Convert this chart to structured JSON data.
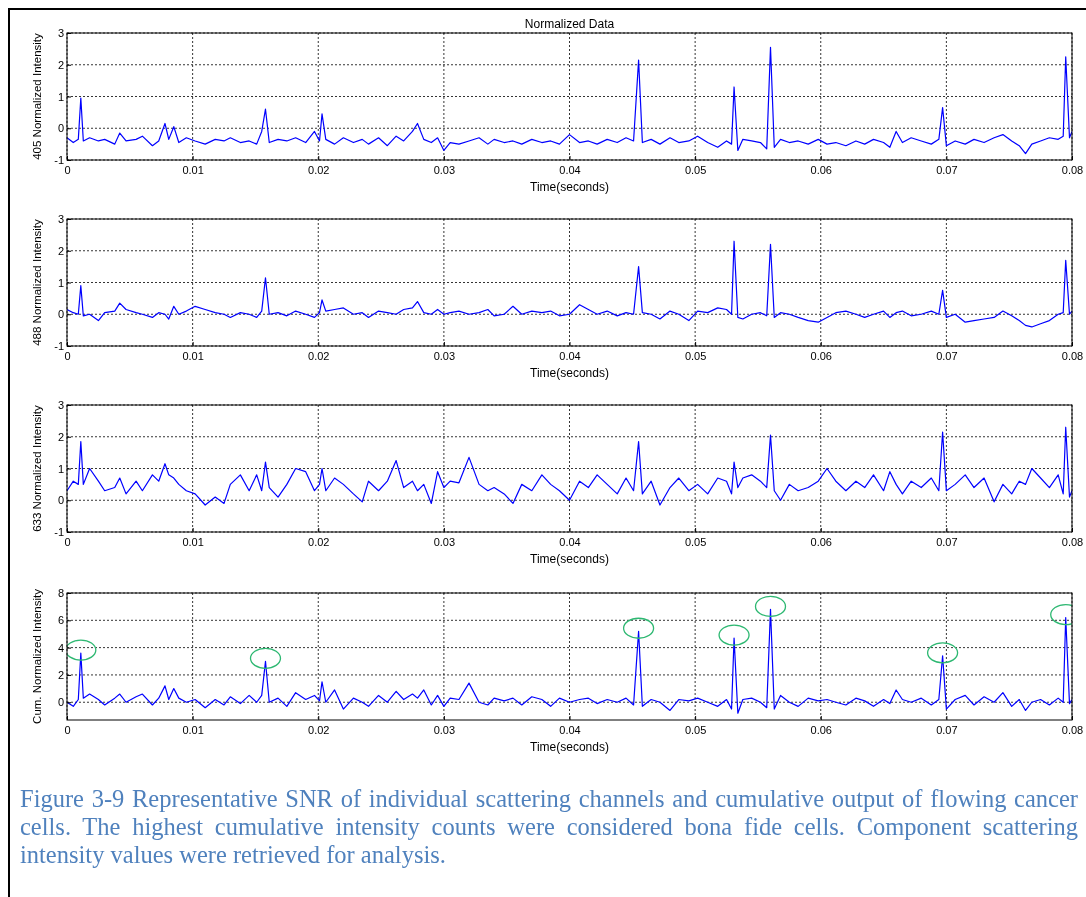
{
  "chart_data": [
    {
      "type": "line",
      "title": "Normalized Data",
      "xlabel": "Time(seconds)",
      "ylabel": "405 Normalized Intensity",
      "xlim": [
        0,
        0.08
      ],
      "xticks": [
        0,
        0.01,
        0.02,
        0.03,
        0.04,
        0.05,
        0.06,
        0.07,
        0.08
      ],
      "ylim": [
        -1,
        3
      ],
      "yticks": [
        -1,
        0,
        1,
        2,
        3
      ],
      "grid": true,
      "x": [
        0,
        0.0005,
        0.0009,
        0.0011,
        0.0013,
        0.0018,
        0.0025,
        0.003,
        0.0038,
        0.0042,
        0.0047,
        0.0055,
        0.006,
        0.0068,
        0.0073,
        0.0078,
        0.0081,
        0.0085,
        0.0089,
        0.0095,
        0.0102,
        0.011,
        0.0118,
        0.0125,
        0.013,
        0.0138,
        0.0145,
        0.0151,
        0.0155,
        0.0158,
        0.0161,
        0.0168,
        0.0175,
        0.0182,
        0.019,
        0.0197,
        0.0201,
        0.0203,
        0.0206,
        0.0213,
        0.022,
        0.0228,
        0.0235,
        0.024,
        0.0248,
        0.0255,
        0.0262,
        0.0268,
        0.0275,
        0.0279,
        0.0284,
        0.029,
        0.0295,
        0.03,
        0.0305,
        0.0312,
        0.032,
        0.0328,
        0.0335,
        0.034,
        0.0348,
        0.0355,
        0.0362,
        0.037,
        0.0378,
        0.0385,
        0.0392,
        0.04,
        0.0408,
        0.0415,
        0.0422,
        0.043,
        0.0438,
        0.0445,
        0.0451,
        0.0455,
        0.0458,
        0.0465,
        0.0472,
        0.048,
        0.0487,
        0.0495,
        0.0502,
        0.051,
        0.0518,
        0.0525,
        0.0529,
        0.0531,
        0.0534,
        0.0538,
        0.0545,
        0.0552,
        0.0557,
        0.056,
        0.0563,
        0.0568,
        0.0575,
        0.0582,
        0.059,
        0.0598,
        0.0605,
        0.0612,
        0.062,
        0.0628,
        0.0635,
        0.0642,
        0.065,
        0.0655,
        0.066,
        0.0665,
        0.0672,
        0.068,
        0.0688,
        0.0694,
        0.0697,
        0.07,
        0.0707,
        0.0715,
        0.0722,
        0.073,
        0.0738,
        0.0745,
        0.0752,
        0.0758,
        0.0763,
        0.0768,
        0.0775,
        0.0782,
        0.0789,
        0.0793,
        0.0795,
        0.0798,
        0.08
      ],
      "series": [
        {
          "color": "#0000ff",
          "values": [
            -0.3,
            -0.45,
            -0.35,
            0.95,
            -0.4,
            -0.3,
            -0.4,
            -0.35,
            -0.5,
            -0.15,
            -0.4,
            -0.35,
            -0.25,
            -0.55,
            -0.4,
            0.15,
            -0.35,
            0.05,
            -0.45,
            -0.3,
            -0.4,
            -0.5,
            -0.35,
            -0.4,
            -0.3,
            -0.45,
            -0.4,
            -0.5,
            -0.1,
            0.6,
            -0.45,
            -0.35,
            -0.4,
            -0.3,
            -0.45,
            -0.1,
            -0.4,
            0.45,
            -0.35,
            -0.5,
            -0.3,
            -0.45,
            -0.35,
            -0.5,
            -0.3,
            -0.55,
            -0.25,
            -0.4,
            -0.1,
            0.15,
            -0.35,
            -0.45,
            -0.3,
            -0.7,
            -0.45,
            -0.5,
            -0.4,
            -0.3,
            -0.5,
            -0.35,
            -0.45,
            -0.4,
            -0.5,
            -0.35,
            -0.45,
            -0.4,
            -0.5,
            -0.2,
            -0.45,
            -0.4,
            -0.5,
            -0.35,
            -0.45,
            -0.3,
            -0.4,
            2.15,
            -0.45,
            -0.35,
            -0.5,
            -0.3,
            -0.45,
            -0.4,
            -0.25,
            -0.45,
            -0.6,
            -0.4,
            -0.5,
            1.3,
            -0.7,
            -0.35,
            -0.4,
            -0.45,
            -0.65,
            2.55,
            -0.6,
            -0.35,
            -0.45,
            -0.4,
            -0.5,
            -0.35,
            -0.5,
            -0.45,
            -0.55,
            -0.4,
            -0.5,
            -0.35,
            -0.45,
            -0.6,
            -0.1,
            -0.45,
            -0.3,
            -0.4,
            -0.5,
            -0.35,
            0.65,
            -0.55,
            -0.4,
            -0.5,
            -0.35,
            -0.45,
            -0.3,
            -0.2,
            -0.4,
            -0.55,
            -0.8,
            -0.5,
            -0.4,
            -0.3,
            -0.35,
            -0.25,
            2.25,
            -0.3,
            -0.1
          ]
        }
      ]
    },
    {
      "type": "line",
      "xlabel": "Time(seconds)",
      "ylabel": "488 Normalized Intensity",
      "xlim": [
        0,
        0.08
      ],
      "xticks": [
        0,
        0.01,
        0.02,
        0.03,
        0.04,
        0.05,
        0.06,
        0.07,
        0.08
      ],
      "ylim": [
        -1,
        3
      ],
      "yticks": [
        -1,
        0,
        1,
        2,
        3
      ],
      "grid": true,
      "x": [
        0,
        0.0005,
        0.0009,
        0.0011,
        0.0013,
        0.0018,
        0.0025,
        0.003,
        0.0038,
        0.0042,
        0.0047,
        0.0055,
        0.006,
        0.0068,
        0.0073,
        0.0078,
        0.0081,
        0.0085,
        0.0089,
        0.0095,
        0.0102,
        0.011,
        0.0118,
        0.0125,
        0.013,
        0.0138,
        0.0145,
        0.0151,
        0.0155,
        0.0158,
        0.0161,
        0.0168,
        0.0175,
        0.0182,
        0.019,
        0.0197,
        0.0201,
        0.0203,
        0.0206,
        0.0213,
        0.022,
        0.0228,
        0.0235,
        0.024,
        0.0248,
        0.0255,
        0.0262,
        0.0268,
        0.0275,
        0.0279,
        0.0284,
        0.029,
        0.0295,
        0.03,
        0.0305,
        0.0312,
        0.032,
        0.0328,
        0.0335,
        0.034,
        0.0348,
        0.0355,
        0.0362,
        0.037,
        0.0378,
        0.0385,
        0.0392,
        0.04,
        0.0408,
        0.0415,
        0.0422,
        0.043,
        0.0438,
        0.0445,
        0.0451,
        0.0455,
        0.0458,
        0.0465,
        0.0472,
        0.048,
        0.0487,
        0.0495,
        0.0502,
        0.051,
        0.0518,
        0.0525,
        0.0529,
        0.0531,
        0.0534,
        0.0538,
        0.0545,
        0.0552,
        0.0557,
        0.056,
        0.0563,
        0.0568,
        0.0575,
        0.0582,
        0.059,
        0.0598,
        0.0605,
        0.0612,
        0.062,
        0.0628,
        0.0635,
        0.0642,
        0.065,
        0.0655,
        0.066,
        0.0665,
        0.0672,
        0.068,
        0.0688,
        0.0694,
        0.0697,
        0.07,
        0.0707,
        0.0715,
        0.0722,
        0.073,
        0.0738,
        0.0745,
        0.0752,
        0.0758,
        0.0763,
        0.0768,
        0.0775,
        0.0782,
        0.0789,
        0.0793,
        0.0795,
        0.0798,
        0.08
      ],
      "series": [
        {
          "color": "#0000ff",
          "values": [
            0.15,
            0.05,
            0.0,
            0.9,
            -0.05,
            0.0,
            -0.2,
            0.05,
            0.1,
            0.35,
            0.15,
            0.05,
            0.0,
            -0.1,
            0.05,
            0.0,
            -0.15,
            0.25,
            0.0,
            0.1,
            0.25,
            0.15,
            0.05,
            0.0,
            -0.1,
            0.05,
            0.0,
            -0.1,
            0.1,
            1.15,
            0.0,
            0.05,
            -0.05,
            0.1,
            0.0,
            -0.1,
            0.05,
            0.45,
            0.1,
            0.15,
            0.2,
            0.0,
            0.05,
            -0.1,
            0.1,
            0.05,
            0.0,
            0.15,
            0.2,
            0.4,
            0.05,
            0.0,
            0.15,
            0.0,
            0.05,
            0.1,
            0.0,
            0.05,
            0.15,
            -0.05,
            0.0,
            0.25,
            0.0,
            0.1,
            0.05,
            0.1,
            -0.05,
            0.0,
            0.3,
            0.15,
            0.0,
            0.1,
            -0.05,
            0.05,
            0.0,
            1.5,
            0.05,
            0.0,
            -0.15,
            0.1,
            0.0,
            -0.2,
            0.1,
            0.05,
            0.2,
            0.15,
            0.0,
            2.3,
            -0.1,
            -0.15,
            0.0,
            0.05,
            -0.05,
            2.2,
            -0.1,
            0.05,
            0.0,
            -0.1,
            -0.2,
            -0.25,
            -0.1,
            0.05,
            0.1,
            0.0,
            -0.1,
            0.0,
            0.1,
            -0.1,
            0.05,
            0.1,
            -0.05,
            0.0,
            0.1,
            0.0,
            0.75,
            -0.1,
            0.0,
            -0.25,
            -0.2,
            -0.15,
            -0.1,
            0.1,
            -0.05,
            -0.2,
            -0.35,
            -0.4,
            -0.3,
            -0.2,
            0.0,
            0.05,
            1.7,
            0.0,
            0.1
          ]
        }
      ]
    },
    {
      "type": "line",
      "xlabel": "Time(seconds)",
      "ylabel": "633 Normalized Intensity",
      "xlim": [
        0,
        0.08
      ],
      "xticks": [
        0,
        0.01,
        0.02,
        0.03,
        0.04,
        0.05,
        0.06,
        0.07,
        0.08
      ],
      "ylim": [
        -1,
        3
      ],
      "yticks": [
        -1,
        0,
        1,
        2,
        3
      ],
      "grid": true,
      "x": [
        0,
        0.0005,
        0.0009,
        0.0011,
        0.0013,
        0.0018,
        0.0025,
        0.003,
        0.0038,
        0.0042,
        0.0047,
        0.0055,
        0.006,
        0.0068,
        0.0073,
        0.0078,
        0.0081,
        0.0085,
        0.0089,
        0.0095,
        0.0102,
        0.011,
        0.0118,
        0.0125,
        0.013,
        0.0138,
        0.0145,
        0.0151,
        0.0155,
        0.0158,
        0.0161,
        0.0168,
        0.0175,
        0.0182,
        0.019,
        0.0197,
        0.0201,
        0.0203,
        0.0206,
        0.0213,
        0.022,
        0.0228,
        0.0235,
        0.024,
        0.0248,
        0.0255,
        0.0262,
        0.0268,
        0.0275,
        0.0279,
        0.0284,
        0.029,
        0.0295,
        0.03,
        0.0305,
        0.0312,
        0.032,
        0.0328,
        0.0335,
        0.034,
        0.0348,
        0.0355,
        0.0362,
        0.037,
        0.0378,
        0.0385,
        0.0392,
        0.04,
        0.0408,
        0.0415,
        0.0422,
        0.043,
        0.0438,
        0.0445,
        0.0451,
        0.0455,
        0.0458,
        0.0465,
        0.0472,
        0.048,
        0.0487,
        0.0495,
        0.0502,
        0.051,
        0.0518,
        0.0525,
        0.0529,
        0.0531,
        0.0534,
        0.0538,
        0.0545,
        0.0552,
        0.0557,
        0.056,
        0.0563,
        0.0568,
        0.0575,
        0.0582,
        0.059,
        0.0598,
        0.0605,
        0.0612,
        0.062,
        0.0628,
        0.0635,
        0.0642,
        0.065,
        0.0655,
        0.066,
        0.0665,
        0.0672,
        0.068,
        0.0688,
        0.0694,
        0.0697,
        0.07,
        0.0707,
        0.0715,
        0.0722,
        0.073,
        0.0738,
        0.0745,
        0.0752,
        0.0758,
        0.0763,
        0.0768,
        0.0775,
        0.0782,
        0.0789,
        0.0793,
        0.0795,
        0.0798,
        0.08
      ],
      "series": [
        {
          "color": "#0000ff",
          "values": [
            0.3,
            0.6,
            0.5,
            1.85,
            0.5,
            1.0,
            0.6,
            0.3,
            0.4,
            0.7,
            0.2,
            0.6,
            0.3,
            0.8,
            0.6,
            1.15,
            0.8,
            0.7,
            0.5,
            0.3,
            0.2,
            -0.15,
            0.1,
            -0.1,
            0.5,
            0.8,
            0.3,
            0.8,
            0.3,
            1.2,
            0.4,
            0.1,
            0.5,
            1.0,
            0.9,
            0.3,
            0.5,
            1.0,
            0.3,
            0.7,
            0.5,
            0.2,
            -0.05,
            0.6,
            0.3,
            0.6,
            1.25,
            0.4,
            0.6,
            0.3,
            0.5,
            -0.1,
            0.9,
            0.4,
            0.6,
            0.55,
            1.35,
            0.5,
            0.3,
            0.4,
            0.2,
            -0.1,
            0.5,
            0.3,
            0.8,
            0.5,
            0.3,
            0.0,
            0.6,
            0.4,
            0.8,
            0.5,
            0.2,
            0.7,
            0.3,
            1.85,
            0.2,
            0.6,
            -0.15,
            0.4,
            0.7,
            0.3,
            0.5,
            0.2,
            0.7,
            0.6,
            0.2,
            1.2,
            0.4,
            0.7,
            0.8,
            0.6,
            0.4,
            2.05,
            0.3,
            0.0,
            0.5,
            0.3,
            0.4,
            0.6,
            1.0,
            0.6,
            0.3,
            0.6,
            0.4,
            0.8,
            0.3,
            0.9,
            0.5,
            0.2,
            0.6,
            0.4,
            0.7,
            0.3,
            2.15,
            0.3,
            0.5,
            0.8,
            0.4,
            0.7,
            -0.05,
            0.5,
            0.2,
            0.6,
            0.5,
            1.0,
            0.7,
            0.4,
            0.8,
            0.2,
            2.3,
            0.1,
            0.3
          ]
        }
      ]
    },
    {
      "type": "line",
      "xlabel": "Time(seconds)",
      "ylabel": "Cum. Normalized Intensity",
      "xlim": [
        0,
        0.08
      ],
      "xticks": [
        0,
        0.01,
        0.02,
        0.03,
        0.04,
        0.05,
        0.06,
        0.07,
        0.08
      ],
      "ylim": [
        -1.3,
        8
      ],
      "yticks": [
        0,
        2,
        4,
        6,
        8
      ],
      "grid": true,
      "annotations": [
        "Figure 3-9 Representative SNR of individual scattering channels and cumulative output of flowing cancer cells. The highest cumulative intensity counts were considered bona fide cells. Component scattering intensity values were retrieved for analysis."
      ],
      "x": [
        0,
        0.0005,
        0.0009,
        0.0011,
        0.0013,
        0.0018,
        0.0025,
        0.003,
        0.0038,
        0.0042,
        0.0047,
        0.0055,
        0.006,
        0.0068,
        0.0073,
        0.0078,
        0.0081,
        0.0085,
        0.0089,
        0.0095,
        0.0102,
        0.011,
        0.0118,
        0.0125,
        0.013,
        0.0138,
        0.0145,
        0.0151,
        0.0155,
        0.0158,
        0.0161,
        0.0168,
        0.0175,
        0.0182,
        0.019,
        0.0197,
        0.0201,
        0.0203,
        0.0206,
        0.0213,
        0.022,
        0.0228,
        0.0235,
        0.024,
        0.0248,
        0.0255,
        0.0262,
        0.0268,
        0.0275,
        0.0279,
        0.0284,
        0.029,
        0.0295,
        0.03,
        0.0305,
        0.0312,
        0.032,
        0.0328,
        0.0335,
        0.034,
        0.0348,
        0.0355,
        0.0362,
        0.037,
        0.0378,
        0.0385,
        0.0392,
        0.04,
        0.0408,
        0.0415,
        0.0422,
        0.043,
        0.0438,
        0.0445,
        0.0451,
        0.0455,
        0.0458,
        0.0465,
        0.0472,
        0.048,
        0.0487,
        0.0495,
        0.0502,
        0.051,
        0.0518,
        0.0525,
        0.0529,
        0.0531,
        0.0534,
        0.0538,
        0.0545,
        0.0552,
        0.0557,
        0.056,
        0.0563,
        0.0568,
        0.0575,
        0.0582,
        0.059,
        0.0598,
        0.0605,
        0.0612,
        0.062,
        0.0628,
        0.0635,
        0.0642,
        0.065,
        0.0655,
        0.066,
        0.0665,
        0.0672,
        0.068,
        0.0688,
        0.0694,
        0.0697,
        0.07,
        0.0707,
        0.0715,
        0.0722,
        0.073,
        0.0738,
        0.0745,
        0.0752,
        0.0758,
        0.0763,
        0.0768,
        0.0775,
        0.0782,
        0.0789,
        0.0793,
        0.0795,
        0.0798,
        0.08
      ],
      "series": [
        {
          "color": "#0000ff",
          "values": [
            0.0,
            -0.3,
            0.2,
            3.6,
            0.3,
            0.6,
            0.2,
            -0.2,
            0.3,
            0.6,
            0.0,
            0.4,
            0.6,
            -0.2,
            0.3,
            1.2,
            0.2,
            1.0,
            0.3,
            0.0,
            0.2,
            -0.4,
            0.2,
            -0.2,
            0.4,
            -0.1,
            0.5,
            0.0,
            0.5,
            3.0,
            0.0,
            0.3,
            -0.3,
            0.7,
            0.2,
            0.5,
            0.1,
            1.5,
            0.0,
            0.9,
            -0.5,
            0.3,
            0.0,
            -0.3,
            0.5,
            0.0,
            0.8,
            0.2,
            0.6,
            0.3,
            0.9,
            -0.2,
            0.5,
            -0.3,
            0.3,
            0.2,
            1.4,
            0.0,
            -0.2,
            0.3,
            0.1,
            0.3,
            -0.2,
            0.4,
            0.2,
            -0.3,
            0.3,
            0.0,
            0.2,
            0.3,
            -0.1,
            0.2,
            0.0,
            0.3,
            -0.2,
            5.2,
            -0.3,
            0.2,
            0.0,
            -0.6,
            0.2,
            0.1,
            0.3,
            0.0,
            -0.3,
            0.2,
            -0.5,
            4.7,
            -0.8,
            0.2,
            0.3,
            0.0,
            -0.4,
            6.8,
            -0.5,
            0.5,
            0.0,
            -0.3,
            0.3,
            0.1,
            0.2,
            0.0,
            -0.2,
            0.3,
            0.1,
            -0.3,
            0.2,
            -0.1,
            0.9,
            0.2,
            0.0,
            0.3,
            -0.2,
            0.2,
            3.4,
            -0.5,
            0.2,
            0.5,
            -0.2,
            0.4,
            0.0,
            0.7,
            -0.3,
            0.2,
            -0.6,
            0.0,
            0.2,
            -0.2,
            0.3,
            0.0,
            6.2,
            -0.1,
            0.2
          ]
        }
      ]
    }
  ]
}
